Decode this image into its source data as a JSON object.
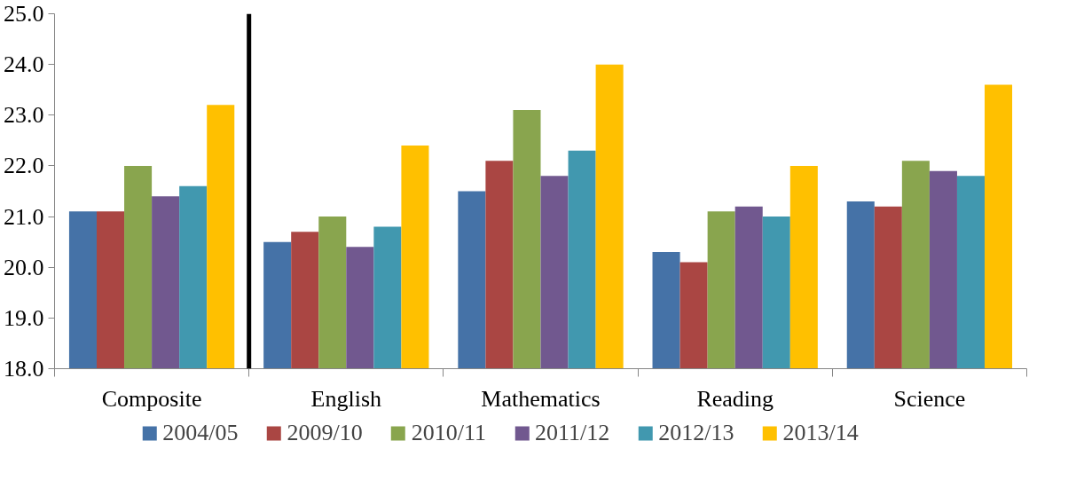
{
  "chart_data": {
    "type": "bar",
    "categories": [
      "Composite",
      "English",
      "Mathematics",
      "Reading",
      "Science"
    ],
    "series": [
      {
        "name": "2004/05",
        "color": "#4572a7",
        "values": [
          21.1,
          20.5,
          21.5,
          20.3,
          21.3
        ]
      },
      {
        "name": "2009/10",
        "color": "#aa4643",
        "values": [
          21.1,
          20.7,
          22.1,
          20.1,
          21.2
        ]
      },
      {
        "name": "2010/11",
        "color": "#89a54e",
        "values": [
          22.0,
          21.0,
          23.1,
          21.1,
          22.1
        ]
      },
      {
        "name": "2011/12",
        "color": "#71588f",
        "values": [
          21.4,
          20.4,
          21.8,
          21.2,
          21.9
        ]
      },
      {
        "name": "2012/13",
        "color": "#4198af",
        "values": [
          21.6,
          20.8,
          22.3,
          21.0,
          21.8
        ]
      },
      {
        "name": "2013/14",
        "color": "#ffc000",
        "values": [
          23.2,
          22.4,
          24.0,
          22.0,
          23.6
        ]
      }
    ],
    "ylim": [
      18,
      25
    ],
    "yticks": [
      {
        "value": 18,
        "label": "18.0"
      },
      {
        "value": 19,
        "label": "19.0"
      },
      {
        "value": 20,
        "label": "20.0"
      },
      {
        "value": 21,
        "label": "21.0"
      },
      {
        "value": 22,
        "label": "22.0"
      },
      {
        "value": 23,
        "label": "23.0"
      },
      {
        "value": 24,
        "label": "24.0"
      },
      {
        "value": 25,
        "label": "25.0"
      }
    ],
    "grid": false,
    "legend": "bottom"
  }
}
